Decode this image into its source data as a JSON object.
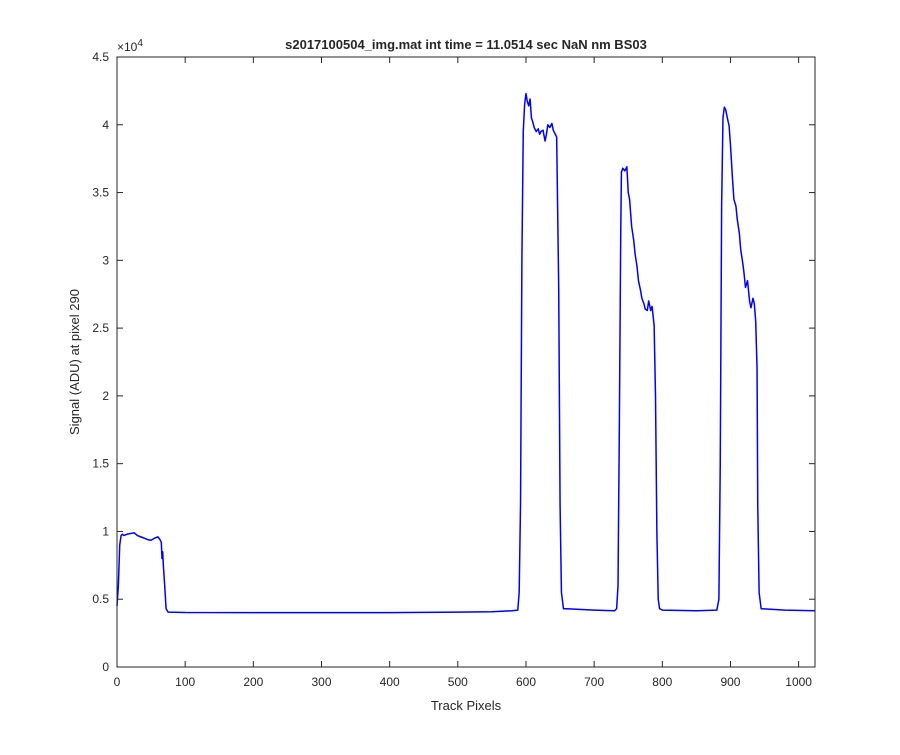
{
  "chart_data": {
    "type": "line",
    "title": "s2017100504_img.mat int time = 11.0514 sec  NaN nm BS03",
    "xlabel": "Track Pixels",
    "ylabel": "Signal (ADU) at pixel 290",
    "xlim": [
      0,
      1024
    ],
    "ylim": [
      0,
      45000
    ],
    "x_ticks": [
      "0",
      "100",
      "200",
      "300",
      "400",
      "500",
      "600",
      "700",
      "800",
      "900",
      "1000"
    ],
    "x_tick_values": [
      0,
      100,
      200,
      300,
      400,
      500,
      600,
      700,
      800,
      900,
      1000
    ],
    "y_ticks": [
      "0",
      "0.5",
      "1",
      "1.5",
      "2",
      "2.5",
      "3",
      "3.5",
      "4",
      "4.5"
    ],
    "y_tick_values": [
      0,
      5000,
      10000,
      15000,
      20000,
      25000,
      30000,
      35000,
      40000,
      45000
    ],
    "y_exponent_label": "×10",
    "y_exponent_power": "4",
    "grid": false,
    "series": [
      {
        "color": "#0000ff",
        "x": [
          0,
          2,
          4,
          6,
          8,
          10,
          15,
          20,
          25,
          30,
          35,
          40,
          45,
          50,
          55,
          60,
          63,
          65,
          66,
          67,
          68,
          70,
          72,
          75,
          100,
          200,
          300,
          400,
          500,
          550,
          580,
          588,
          590,
          592,
          594,
          596,
          598,
          600,
          602,
          604,
          606,
          608,
          610,
          612,
          615,
          618,
          620,
          622,
          625,
          628,
          630,
          632,
          635,
          638,
          640,
          643,
          645,
          648,
          650,
          652,
          655,
          660,
          700,
          730,
          733,
          735,
          737,
          739,
          740,
          742,
          745,
          748,
          750,
          752,
          755,
          758,
          760,
          763,
          765,
          768,
          770,
          773,
          775,
          778,
          780,
          783,
          785,
          788,
          790,
          792,
          794,
          796,
          798,
          800,
          850,
          880,
          883,
          885,
          887,
          889,
          891,
          893,
          895,
          898,
          900,
          903,
          905,
          908,
          910,
          913,
          915,
          918,
          920,
          922,
          925,
          928,
          930,
          933,
          935,
          937,
          939,
          940,
          942,
          945,
          980,
          1024
        ],
        "y": [
          4500,
          6000,
          9000,
          9700,
          9800,
          9700,
          9800,
          9850,
          9900,
          9700,
          9600,
          9500,
          9400,
          9350,
          9500,
          9600,
          9400,
          9200,
          8000,
          8500,
          7500,
          6000,
          4300,
          4050,
          4020,
          4010,
          4010,
          4010,
          4050,
          4080,
          4150,
          4200,
          5500,
          12000,
          30000,
          39500,
          41500,
          42300,
          41700,
          41400,
          41900,
          40500,
          40200,
          39800,
          39500,
          39700,
          39300,
          39500,
          39600,
          38800,
          39300,
          40000,
          39800,
          40100,
          39600,
          39300,
          39100,
          28000,
          12000,
          5500,
          4300,
          4300,
          4200,
          4150,
          4300,
          6000,
          18000,
          32000,
          36500,
          36800,
          36600,
          36900,
          35000,
          34500,
          32500,
          31500,
          30500,
          29500,
          28500,
          27800,
          27200,
          26800,
          26400,
          26300,
          27000,
          26300,
          26600,
          25200,
          20000,
          10000,
          5000,
          4300,
          4250,
          4200,
          4150,
          4200,
          5000,
          15000,
          34000,
          40500,
          41300,
          41100,
          40600,
          39900,
          38500,
          36000,
          34500,
          34000,
          33000,
          32000,
          30800,
          29800,
          29000,
          28000,
          28500,
          27000,
          26500,
          27200,
          26800,
          25500,
          22000,
          12000,
          5500,
          4300,
          4200,
          4150
        ]
      }
    ]
  }
}
